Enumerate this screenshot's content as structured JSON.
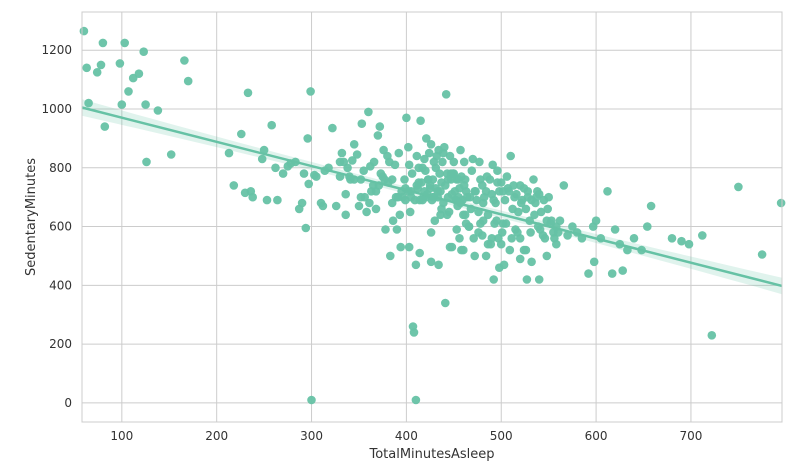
{
  "chart_data": {
    "type": "scatter",
    "xlabel": "TotalMinutesAsleep",
    "ylabel": "SedentaryMinutes",
    "xlim": [
      58,
      796
    ],
    "ylim": [
      -65,
      1330
    ],
    "xticks": [
      100,
      200,
      300,
      400,
      500,
      600,
      700
    ],
    "yticks": [
      0,
      200,
      400,
      600,
      800,
      1000,
      1200
    ],
    "grid": true,
    "colors": {
      "points": "#66c2a5",
      "line": "#66c2a5",
      "band": "#66c2a5",
      "grid": "#cccccc",
      "axes": "#cccccc"
    },
    "regression": {
      "x": [
        58,
        796
      ],
      "y": [
        1005,
        398
      ],
      "ci_halfwidth_end": 28,
      "ci_halfwidth_mid": 12
    },
    "x": [
      60,
      63,
      65,
      74,
      78,
      80,
      82,
      98,
      100,
      103,
      107,
      112,
      118,
      123,
      125,
      126,
      138,
      152,
      166,
      170,
      213,
      218,
      226,
      230,
      233,
      236,
      238,
      248,
      250,
      253,
      258,
      262,
      264,
      270,
      275,
      278,
      283,
      287,
      290,
      292,
      294,
      296,
      297,
      299,
      303,
      305,
      310,
      314,
      318,
      322,
      326,
      330,
      332,
      334,
      336,
      338,
      340,
      343,
      345,
      348,
      350,
      352,
      353,
      355,
      356,
      358,
      360,
      362,
      363,
      365,
      366,
      368,
      370,
      372,
      373,
      375,
      376,
      378,
      380,
      382,
      383,
      385,
      386,
      388,
      389,
      390,
      392,
      393,
      395,
      396,
      398,
      399,
      400,
      402,
      403,
      404,
      405,
      406,
      408,
      409,
      410,
      411,
      412,
      413,
      414,
      415,
      416,
      417,
      418,
      419,
      420,
      421,
      422,
      423,
      424,
      425,
      426,
      427,
      428,
      429,
      430,
      431,
      432,
      433,
      434,
      435,
      436,
      437,
      438,
      439,
      440,
      441,
      442,
      443,
      444,
      445,
      446,
      447,
      448,
      449,
      450,
      451,
      452,
      453,
      454,
      455,
      456,
      457,
      458,
      459,
      460,
      461,
      462,
      463,
      464,
      466,
      468,
      470,
      472,
      474,
      476,
      478,
      480,
      482,
      484,
      486,
      488,
      490,
      492,
      494,
      496,
      498,
      500,
      502,
      504,
      506,
      508,
      510,
      512,
      514,
      516,
      518,
      520,
      522,
      524,
      526,
      528,
      530,
      532,
      534,
      536,
      538,
      540,
      542,
      545,
      548,
      550,
      552,
      555,
      558,
      562,
      566,
      570,
      575,
      580,
      585,
      592,
      597,
      598,
      600,
      605,
      612,
      617,
      620,
      625,
      628,
      633,
      640,
      648,
      654,
      658,
      680,
      690,
      698,
      712,
      722,
      750,
      775,
      795,
      300,
      410,
      403,
      426,
      434,
      448,
      456,
      460,
      476,
      480,
      484,
      490,
      495,
      500,
      505,
      515,
      520,
      526,
      531,
      540,
      548,
      556,
      560,
      312,
      330,
      345,
      368,
      377,
      385,
      394,
      402,
      407,
      414,
      421,
      426,
      436,
      441,
      446,
      452,
      458,
      466,
      472,
      478,
      486,
      492,
      498,
      503,
      511,
      520,
      527,
      535,
      541,
      544,
      549,
      553,
      558,
      428,
      437,
      443,
      453,
      463,
      471,
      481,
      489,
      493,
      497,
      501,
      509,
      517,
      524,
      532,
      539,
      546,
      336,
      341,
      352,
      361,
      371,
      381,
      391,
      399,
      405,
      413,
      419,
      425,
      431,
      439,
      447,
      455,
      461,
      469,
      477,
      485,
      491,
      496,
      502,
      507,
      513,
      521,
      528,
      537,
      411,
      417,
      423,
      429,
      433,
      444,
      450,
      457,
      462,
      467,
      473,
      481
    ],
    "y": [
      1265,
      1140,
      1020,
      1125,
      1150,
      1225,
      940,
      1155,
      1015,
      1225,
      1060,
      1105,
      1120,
      1195,
      1015,
      820,
      995,
      845,
      1165,
      1095,
      850,
      740,
      915,
      715,
      1055,
      720,
      700,
      830,
      860,
      690,
      945,
      800,
      690,
      780,
      805,
      815,
      820,
      660,
      680,
      780,
      595,
      900,
      745,
      1060,
      775,
      770,
      680,
      790,
      800,
      935,
      670,
      820,
      850,
      820,
      710,
      800,
      770,
      825,
      880,
      845,
      670,
      760,
      950,
      790,
      700,
      650,
      990,
      805,
      720,
      740,
      820,
      720,
      910,
      940,
      780,
      770,
      860,
      590,
      840,
      820,
      500,
      760,
      620,
      810,
      700,
      590,
      850,
      640,
      720,
      700,
      760,
      690,
      970,
      870,
      810,
      650,
      720,
      780,
      240,
      690,
      470,
      840,
      730,
      750,
      690,
      960,
      750,
      800,
      700,
      830,
      790,
      900,
      710,
      760,
      850,
      730,
      880,
      690,
      760,
      820,
      620,
      730,
      840,
      700,
      860,
      780,
      720,
      750,
      820,
      680,
      870,
      740,
      1050,
      780,
      700,
      650,
      840,
      760,
      710,
      780,
      820,
      720,
      690,
      760,
      670,
      700,
      730,
      860,
      770,
      690,
      640,
      820,
      760,
      720,
      700,
      600,
      660,
      830,
      720,
      690,
      650,
      760,
      740,
      700,
      720,
      640,
      760,
      710,
      690,
      680,
      790,
      720,
      750,
      610,
      690,
      770,
      720,
      840,
      660,
      700,
      710,
      650,
      740,
      690,
      730,
      660,
      700,
      620,
      690,
      760,
      680,
      720,
      710,
      650,
      690,
      620,
      700,
      610,
      580,
      600,
      620,
      740,
      570,
      600,
      580,
      560,
      440,
      600,
      480,
      620,
      560,
      720,
      440,
      590,
      540,
      450,
      520,
      560,
      520,
      600,
      670,
      560,
      550,
      540,
      570,
      230,
      735,
      505,
      680,
      10,
      10,
      530,
      480,
      470,
      530,
      560,
      520,
      580,
      570,
      500,
      560,
      620,
      540,
      610,
      590,
      560,
      520,
      580,
      420,
      500,
      560,
      580,
      670,
      770,
      760,
      660,
      760,
      680,
      530,
      720,
      260,
      510,
      700,
      580,
      640,
      340,
      530,
      690,
      520,
      600,
      500,
      610,
      540,
      420,
      460,
      470,
      560,
      490,
      420,
      640,
      590,
      570,
      660,
      620,
      540,
      700,
      660,
      640,
      590,
      610,
      560,
      620,
      540,
      610,
      560,
      580,
      520,
      580,
      520,
      480,
      600,
      560,
      640,
      760,
      700,
      680,
      740,
      750,
      700,
      730,
      700,
      800,
      720,
      740,
      800,
      850,
      780,
      760,
      740,
      790,
      820,
      770,
      810,
      750,
      720,
      730,
      740,
      680,
      720,
      700,
      740,
      690,
      760,
      700,
      720,
      760,
      780,
      680,
      640,
      700,
      720,
      680
    ]
  }
}
